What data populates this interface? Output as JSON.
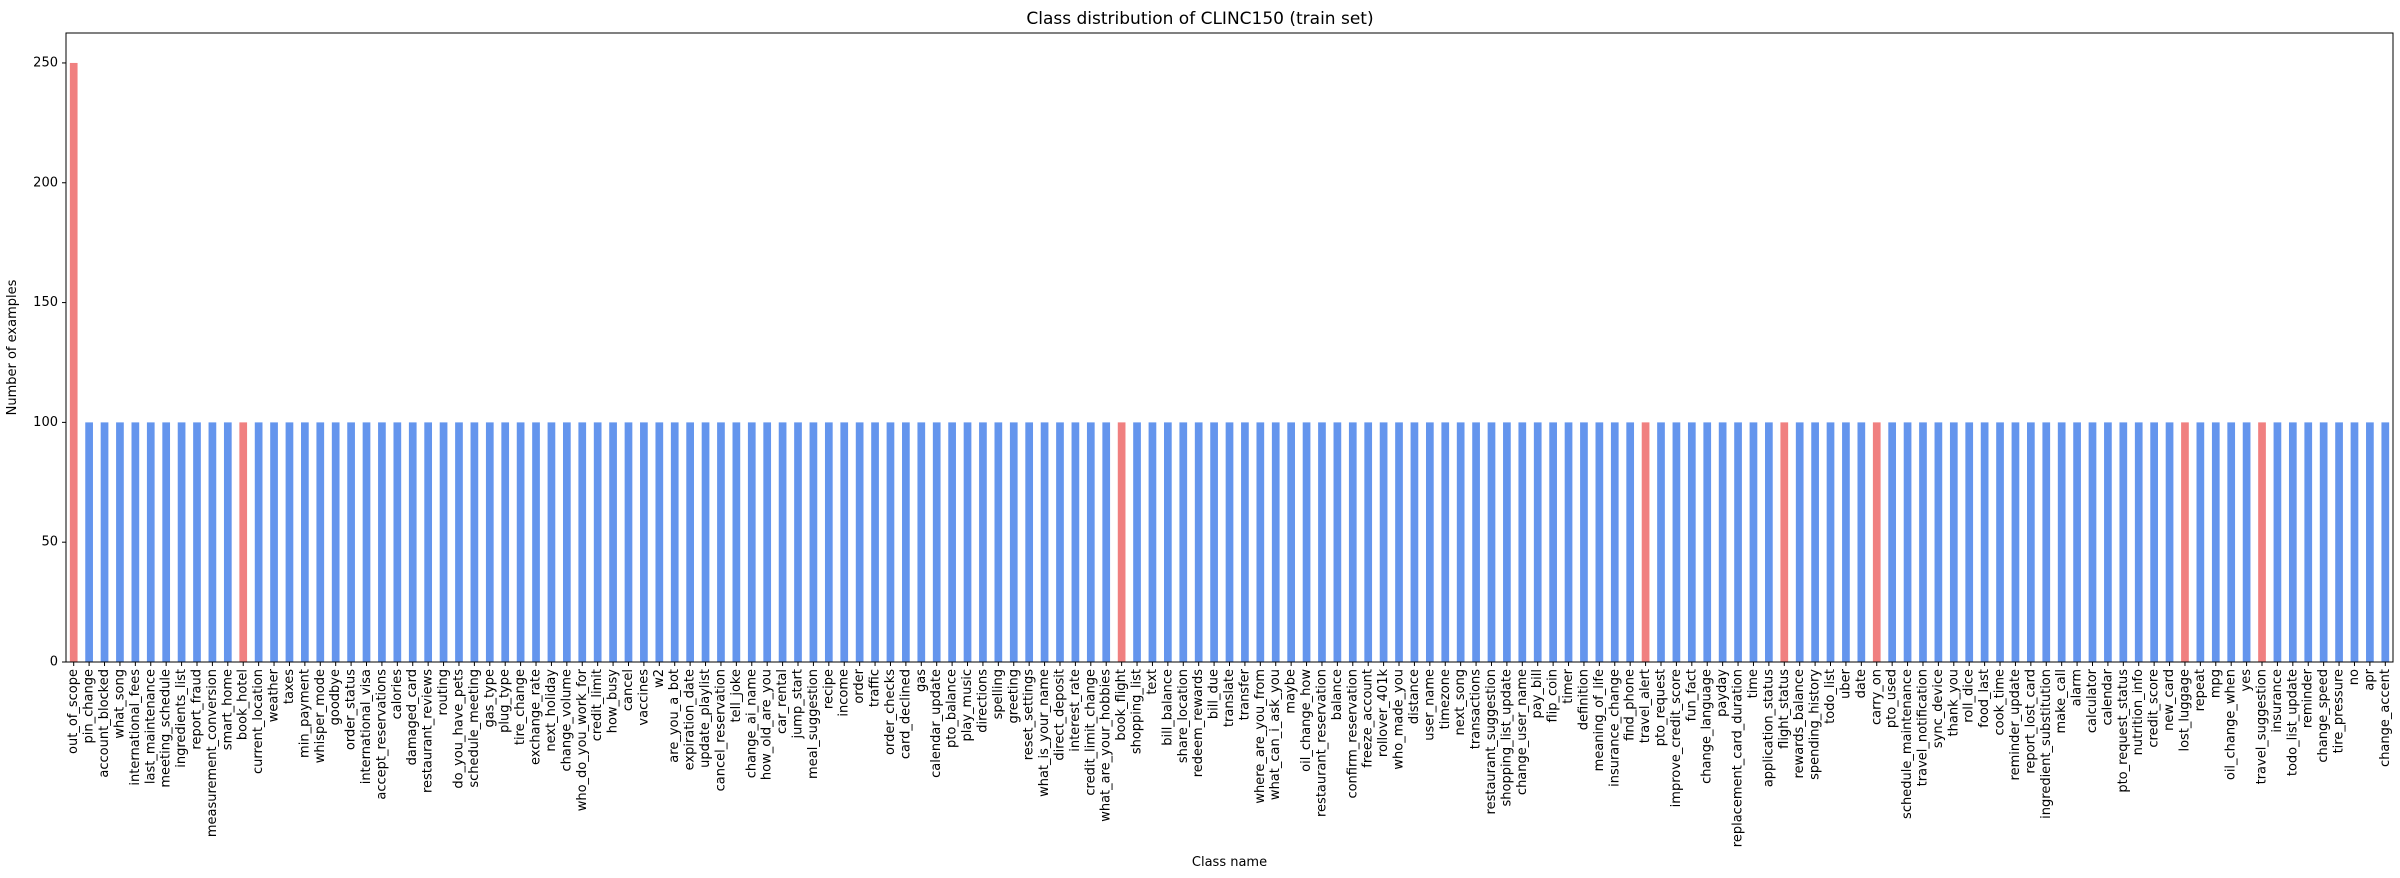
{
  "chart_data": {
    "type": "bar",
    "title": "Class distribution of CLINC150 (train set)",
    "xlabel": "Class name",
    "ylabel": "Number of examples",
    "ylim": [
      0,
      262.5
    ],
    "yticks": [
      0,
      50,
      100,
      150,
      200,
      250
    ],
    "grid": false,
    "colors": {
      "default": "#6495ED",
      "highlight": "#F08080"
    },
    "highlighted": [
      "out_of_scope",
      "book_hotel",
      "book_flight",
      "travel_alert",
      "flight_status",
      "carry_on",
      "lost_luggage",
      "travel_suggestion"
    ],
    "categories": [
      "out_of_scope",
      "pin_change",
      "account_blocked",
      "what_song",
      "international_fees",
      "last_maintenance",
      "meeting_schedule",
      "ingredients_list",
      "report_fraud",
      "measurement_conversion",
      "smart_home",
      "book_hotel",
      "current_location",
      "weather",
      "taxes",
      "min_payment",
      "whisper_mode",
      "goodbye",
      "order_status",
      "international_visa",
      "accept_reservations",
      "calories",
      "damaged_card",
      "restaurant_reviews",
      "routing",
      "do_you_have_pets",
      "schedule_meeting",
      "gas_type",
      "plug_type",
      "tire_change",
      "exchange_rate",
      "next_holiday",
      "change_volume",
      "who_do_you_work_for",
      "credit_limit",
      "how_busy",
      "cancel",
      "vaccines",
      "w2",
      "are_you_a_bot",
      "expiration_date",
      "update_playlist",
      "cancel_reservation",
      "tell_joke",
      "change_ai_name",
      "how_old_are_you",
      "car_rental",
      "jump_start",
      "meal_suggestion",
      "recipe",
      "income",
      "order",
      "traffic",
      "order_checks",
      "card_declined",
      "gas",
      "calendar_update",
      "pto_balance",
      "play_music",
      "directions",
      "spelling",
      "greeting",
      "reset_settings",
      "what_is_your_name",
      "direct_deposit",
      "interest_rate",
      "credit_limit_change",
      "what_are_your_hobbies",
      "book_flight",
      "shopping_list",
      "text",
      "bill_balance",
      "share_location",
      "redeem_rewards",
      "bill_due",
      "translate",
      "transfer",
      "where_are_you_from",
      "what_can_i_ask_you",
      "maybe",
      "oil_change_how",
      "restaurant_reservation",
      "balance",
      "confirm_reservation",
      "freeze_account",
      "rollover_401k",
      "who_made_you",
      "distance",
      "user_name",
      "timezone",
      "next_song",
      "transactions",
      "restaurant_suggestion",
      "shopping_list_update",
      "change_user_name",
      "pay_bill",
      "flip_coin",
      "timer",
      "definition",
      "meaning_of_life",
      "insurance_change",
      "find_phone",
      "travel_alert",
      "pto_request",
      "improve_credit_score",
      "fun_fact",
      "change_language",
      "payday",
      "replacement_card_duration",
      "time",
      "application_status",
      "flight_status",
      "rewards_balance",
      "spending_history",
      "todo_list",
      "uber",
      "date",
      "carry_on",
      "pto_used",
      "schedule_maintenance",
      "travel_notification",
      "sync_device",
      "thank_you",
      "roll_dice",
      "food_last",
      "cook_time",
      "reminder_update",
      "report_lost_card",
      "ingredient_substitution",
      "make_call",
      "alarm",
      "calculator",
      "calendar",
      "pto_request_status",
      "nutrition_info",
      "credit_score",
      "new_card",
      "lost_luggage",
      "repeat",
      "mpg",
      "oil_change_when",
      "yes",
      "travel_suggestion",
      "insurance",
      "todo_list_update",
      "reminder",
      "change_speed",
      "tire_pressure",
      "no",
      "apr",
      "change_accent"
    ],
    "values": [
      250,
      100,
      100,
      100,
      100,
      100,
      100,
      100,
      100,
      100,
      100,
      100,
      100,
      100,
      100,
      100,
      100,
      100,
      100,
      100,
      100,
      100,
      100,
      100,
      100,
      100,
      100,
      100,
      100,
      100,
      100,
      100,
      100,
      100,
      100,
      100,
      100,
      100,
      100,
      100,
      100,
      100,
      100,
      100,
      100,
      100,
      100,
      100,
      100,
      100,
      100,
      100,
      100,
      100,
      100,
      100,
      100,
      100,
      100,
      100,
      100,
      100,
      100,
      100,
      100,
      100,
      100,
      100,
      100,
      100,
      100,
      100,
      100,
      100,
      100,
      100,
      100,
      100,
      100,
      100,
      100,
      100,
      100,
      100,
      100,
      100,
      100,
      100,
      100,
      100,
      100,
      100,
      100,
      100,
      100,
      100,
      100,
      100,
      100,
      100,
      100,
      100,
      100,
      100,
      100,
      100,
      100,
      100,
      100,
      100,
      100,
      100,
      100,
      100,
      100,
      100,
      100,
      100,
      100,
      100,
      100,
      100,
      100,
      100,
      100,
      100,
      100,
      100,
      100,
      100,
      100,
      100,
      100,
      100,
      100,
      100,
      100,
      100,
      100,
      100,
      100,
      100,
      100,
      100,
      100,
      100,
      100,
      100,
      100,
      100,
      100
    ]
  }
}
